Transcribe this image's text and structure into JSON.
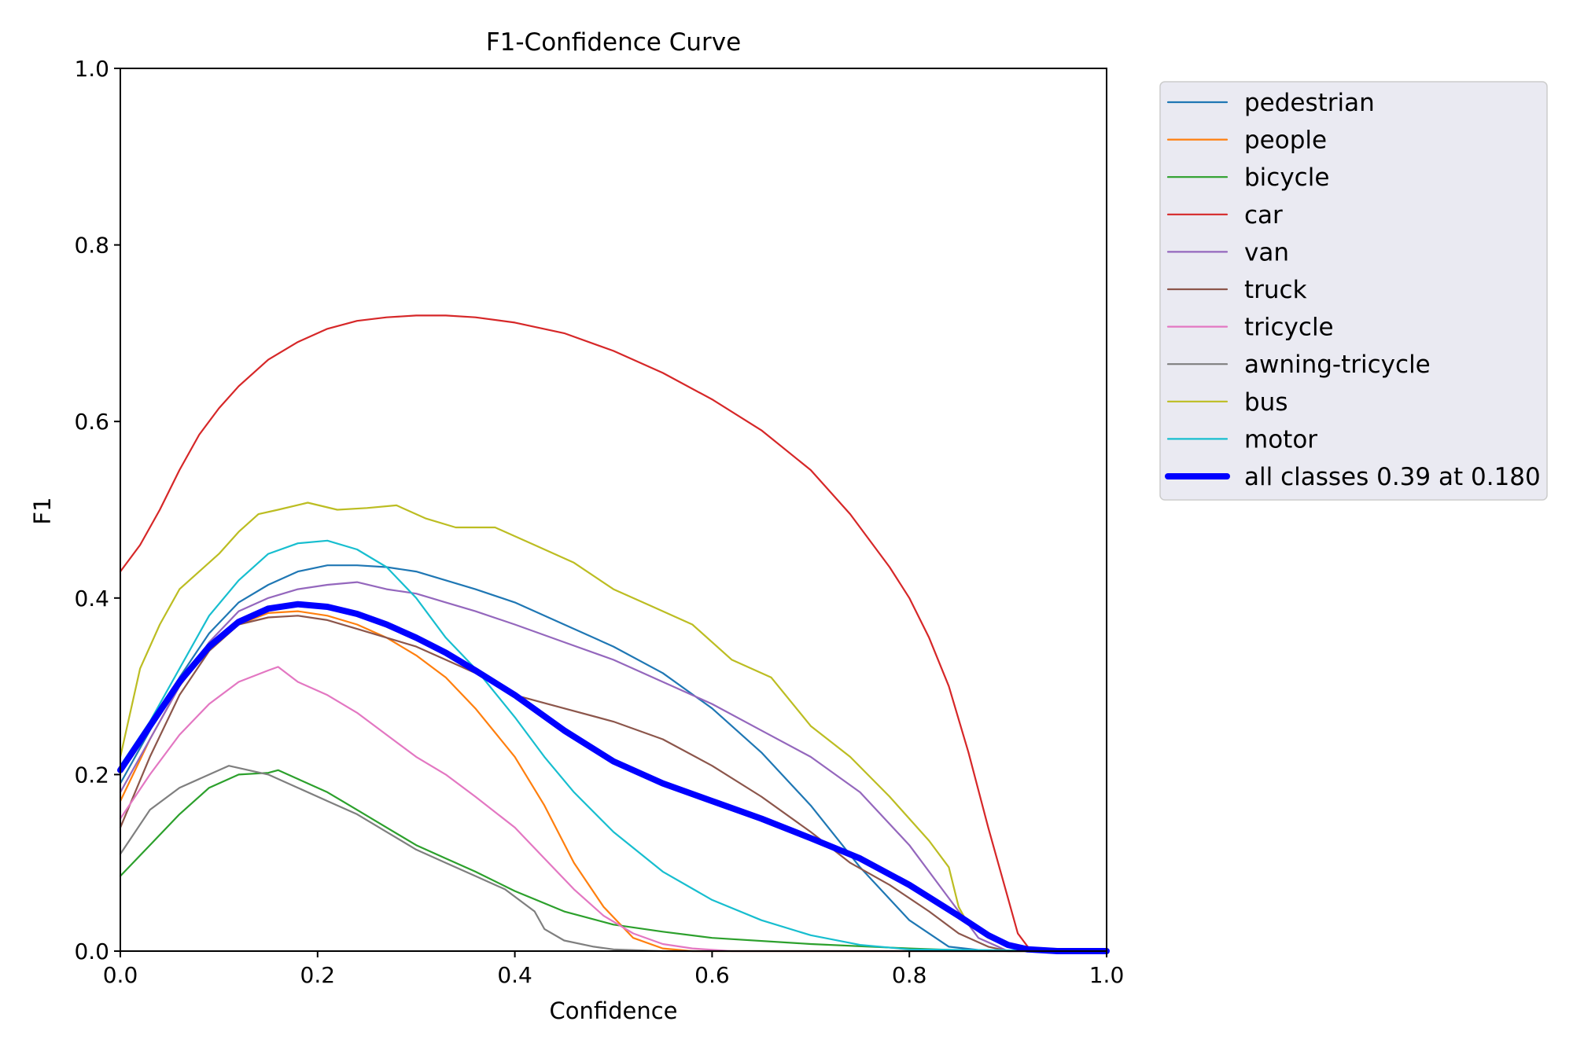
{
  "chart_data": {
    "type": "line",
    "title": "F1-Confidence Curve",
    "xlabel": "Confidence",
    "ylabel": "F1",
    "xlim": [
      0.0,
      1.0
    ],
    "ylim": [
      0.0,
      1.0
    ],
    "xticks": [
      "0.0",
      "0.2",
      "0.4",
      "0.6",
      "0.8",
      "1.0"
    ],
    "yticks": [
      "0.0",
      "0.2",
      "0.4",
      "0.6",
      "0.8",
      "1.0"
    ],
    "grid": false,
    "legend_position": "outside-top-right",
    "series": [
      {
        "name": "pedestrian",
        "color": "#1f77b4",
        "x": [
          0,
          0.03,
          0.06,
          0.09,
          0.12,
          0.15,
          0.18,
          0.21,
          0.24,
          0.27,
          0.3,
          0.33,
          0.36,
          0.4,
          0.45,
          0.5,
          0.55,
          0.6,
          0.65,
          0.7,
          0.75,
          0.8,
          0.84,
          0.88,
          0.92,
          1.0
        ],
        "y": [
          0.19,
          0.25,
          0.31,
          0.36,
          0.395,
          0.415,
          0.43,
          0.437,
          0.437,
          0.435,
          0.43,
          0.42,
          0.41,
          0.395,
          0.37,
          0.345,
          0.315,
          0.275,
          0.225,
          0.165,
          0.095,
          0.035,
          0.005,
          0.0,
          0.0,
          0.0
        ]
      },
      {
        "name": "people",
        "color": "#ff7f0e",
        "x": [
          0,
          0.03,
          0.06,
          0.09,
          0.12,
          0.15,
          0.18,
          0.21,
          0.24,
          0.27,
          0.3,
          0.33,
          0.36,
          0.4,
          0.43,
          0.46,
          0.49,
          0.52,
          0.55,
          0.58,
          0.62,
          0.7,
          1.0
        ],
        "y": [
          0.17,
          0.24,
          0.3,
          0.345,
          0.37,
          0.383,
          0.385,
          0.38,
          0.37,
          0.355,
          0.335,
          0.31,
          0.275,
          0.22,
          0.165,
          0.1,
          0.05,
          0.015,
          0.003,
          0.0,
          0.0,
          0.0,
          0.0
        ]
      },
      {
        "name": "bicycle",
        "color": "#2ca02c",
        "x": [
          0,
          0.03,
          0.06,
          0.09,
          0.12,
          0.15,
          0.16,
          0.18,
          0.21,
          0.24,
          0.27,
          0.3,
          0.33,
          0.36,
          0.4,
          0.45,
          0.5,
          0.55,
          0.6,
          0.7,
          0.8,
          0.85,
          0.9,
          1.0
        ],
        "y": [
          0.085,
          0.12,
          0.155,
          0.185,
          0.2,
          0.202,
          0.205,
          0.195,
          0.18,
          0.16,
          0.14,
          0.12,
          0.105,
          0.09,
          0.068,
          0.045,
          0.03,
          0.022,
          0.015,
          0.008,
          0.003,
          0.001,
          0.0,
          0.0
        ]
      },
      {
        "name": "car",
        "color": "#d62728",
        "x": [
          0,
          0.02,
          0.04,
          0.06,
          0.08,
          0.1,
          0.12,
          0.15,
          0.18,
          0.21,
          0.24,
          0.27,
          0.3,
          0.33,
          0.36,
          0.4,
          0.45,
          0.5,
          0.55,
          0.6,
          0.65,
          0.7,
          0.74,
          0.78,
          0.8,
          0.82,
          0.84,
          0.86,
          0.88,
          0.9,
          0.91,
          0.92,
          0.93,
          1.0
        ],
        "y": [
          0.43,
          0.46,
          0.5,
          0.545,
          0.585,
          0.615,
          0.64,
          0.67,
          0.69,
          0.705,
          0.714,
          0.718,
          0.72,
          0.72,
          0.718,
          0.712,
          0.7,
          0.68,
          0.655,
          0.625,
          0.59,
          0.545,
          0.495,
          0.435,
          0.4,
          0.355,
          0.3,
          0.225,
          0.14,
          0.06,
          0.02,
          0.005,
          0.0,
          0.0
        ]
      },
      {
        "name": "van",
        "color": "#9467bd",
        "x": [
          0,
          0.03,
          0.06,
          0.09,
          0.12,
          0.15,
          0.18,
          0.21,
          0.24,
          0.27,
          0.3,
          0.33,
          0.36,
          0.4,
          0.45,
          0.5,
          0.55,
          0.6,
          0.65,
          0.7,
          0.75,
          0.8,
          0.84,
          0.87,
          0.9,
          1.0
        ],
        "y": [
          0.18,
          0.24,
          0.3,
          0.35,
          0.385,
          0.4,
          0.41,
          0.415,
          0.418,
          0.41,
          0.405,
          0.395,
          0.385,
          0.37,
          0.35,
          0.33,
          0.305,
          0.28,
          0.25,
          0.22,
          0.18,
          0.12,
          0.06,
          0.015,
          0.0,
          0.0
        ]
      },
      {
        "name": "truck",
        "color": "#8c564b",
        "x": [
          0,
          0.03,
          0.06,
          0.09,
          0.12,
          0.15,
          0.18,
          0.21,
          0.24,
          0.27,
          0.3,
          0.33,
          0.36,
          0.4,
          0.45,
          0.5,
          0.55,
          0.6,
          0.65,
          0.7,
          0.74,
          0.78,
          0.82,
          0.85,
          0.88,
          0.9,
          1.0
        ],
        "y": [
          0.14,
          0.22,
          0.29,
          0.34,
          0.37,
          0.378,
          0.38,
          0.375,
          0.365,
          0.355,
          0.345,
          0.33,
          0.315,
          0.29,
          0.275,
          0.26,
          0.24,
          0.21,
          0.175,
          0.135,
          0.1,
          0.075,
          0.045,
          0.02,
          0.005,
          0.0,
          0.0
        ]
      },
      {
        "name": "tricycle",
        "color": "#e377c2",
        "x": [
          0,
          0.03,
          0.06,
          0.09,
          0.12,
          0.15,
          0.16,
          0.18,
          0.21,
          0.24,
          0.27,
          0.3,
          0.33,
          0.36,
          0.4,
          0.43,
          0.46,
          0.49,
          0.52,
          0.55,
          0.58,
          0.62,
          0.7,
          1.0
        ],
        "y": [
          0.15,
          0.2,
          0.245,
          0.28,
          0.305,
          0.318,
          0.322,
          0.305,
          0.29,
          0.27,
          0.245,
          0.22,
          0.2,
          0.175,
          0.14,
          0.105,
          0.07,
          0.04,
          0.02,
          0.008,
          0.003,
          0.0,
          0.0,
          0.0
        ]
      },
      {
        "name": "awning-tricycle",
        "color": "#7f7f7f",
        "x": [
          0,
          0.03,
          0.06,
          0.09,
          0.11,
          0.13,
          0.15,
          0.18,
          0.21,
          0.24,
          0.27,
          0.3,
          0.33,
          0.36,
          0.39,
          0.42,
          0.43,
          0.45,
          0.48,
          0.5,
          0.55,
          0.6,
          1.0
        ],
        "y": [
          0.11,
          0.16,
          0.185,
          0.2,
          0.21,
          0.205,
          0.2,
          0.185,
          0.17,
          0.155,
          0.135,
          0.115,
          0.1,
          0.085,
          0.07,
          0.045,
          0.025,
          0.012,
          0.005,
          0.002,
          0.0,
          0.0,
          0.0
        ]
      },
      {
        "name": "bus",
        "color": "#bcbd22",
        "x": [
          0,
          0.02,
          0.04,
          0.06,
          0.08,
          0.1,
          0.12,
          0.14,
          0.16,
          0.19,
          0.22,
          0.25,
          0.28,
          0.31,
          0.34,
          0.38,
          0.42,
          0.46,
          0.5,
          0.54,
          0.58,
          0.62,
          0.66,
          0.7,
          0.74,
          0.78,
          0.82,
          0.84,
          0.85,
          0.86,
          0.88,
          0.9,
          1.0
        ],
        "y": [
          0.22,
          0.32,
          0.37,
          0.41,
          0.43,
          0.45,
          0.475,
          0.495,
          0.5,
          0.508,
          0.5,
          0.502,
          0.505,
          0.49,
          0.48,
          0.48,
          0.46,
          0.44,
          0.41,
          0.39,
          0.37,
          0.33,
          0.31,
          0.255,
          0.22,
          0.175,
          0.125,
          0.095,
          0.05,
          0.03,
          0.015,
          0.005,
          0.0
        ]
      },
      {
        "name": "motor",
        "color": "#17becf",
        "x": [
          0,
          0.03,
          0.06,
          0.09,
          0.12,
          0.15,
          0.18,
          0.21,
          0.24,
          0.27,
          0.3,
          0.33,
          0.36,
          0.4,
          0.43,
          0.46,
          0.5,
          0.55,
          0.6,
          0.65,
          0.7,
          0.75,
          0.8,
          1.0
        ],
        "y": [
          0.21,
          0.26,
          0.32,
          0.38,
          0.42,
          0.45,
          0.462,
          0.465,
          0.455,
          0.435,
          0.4,
          0.355,
          0.32,
          0.265,
          0.22,
          0.18,
          0.135,
          0.09,
          0.058,
          0.035,
          0.018,
          0.007,
          0.002,
          0.0
        ]
      },
      {
        "name": "all classes 0.39 at 0.180",
        "color": "#0000ff",
        "emphasis": true,
        "x": [
          0,
          0.03,
          0.06,
          0.09,
          0.12,
          0.15,
          0.18,
          0.21,
          0.24,
          0.27,
          0.3,
          0.33,
          0.36,
          0.4,
          0.45,
          0.5,
          0.55,
          0.6,
          0.65,
          0.7,
          0.75,
          0.8,
          0.85,
          0.88,
          0.9,
          0.92,
          0.95,
          1.0
        ],
        "y": [
          0.205,
          0.255,
          0.305,
          0.345,
          0.373,
          0.388,
          0.393,
          0.39,
          0.382,
          0.37,
          0.355,
          0.338,
          0.318,
          0.29,
          0.25,
          0.215,
          0.19,
          0.17,
          0.15,
          0.128,
          0.105,
          0.075,
          0.04,
          0.018,
          0.007,
          0.002,
          0.0,
          0.0
        ]
      }
    ]
  }
}
